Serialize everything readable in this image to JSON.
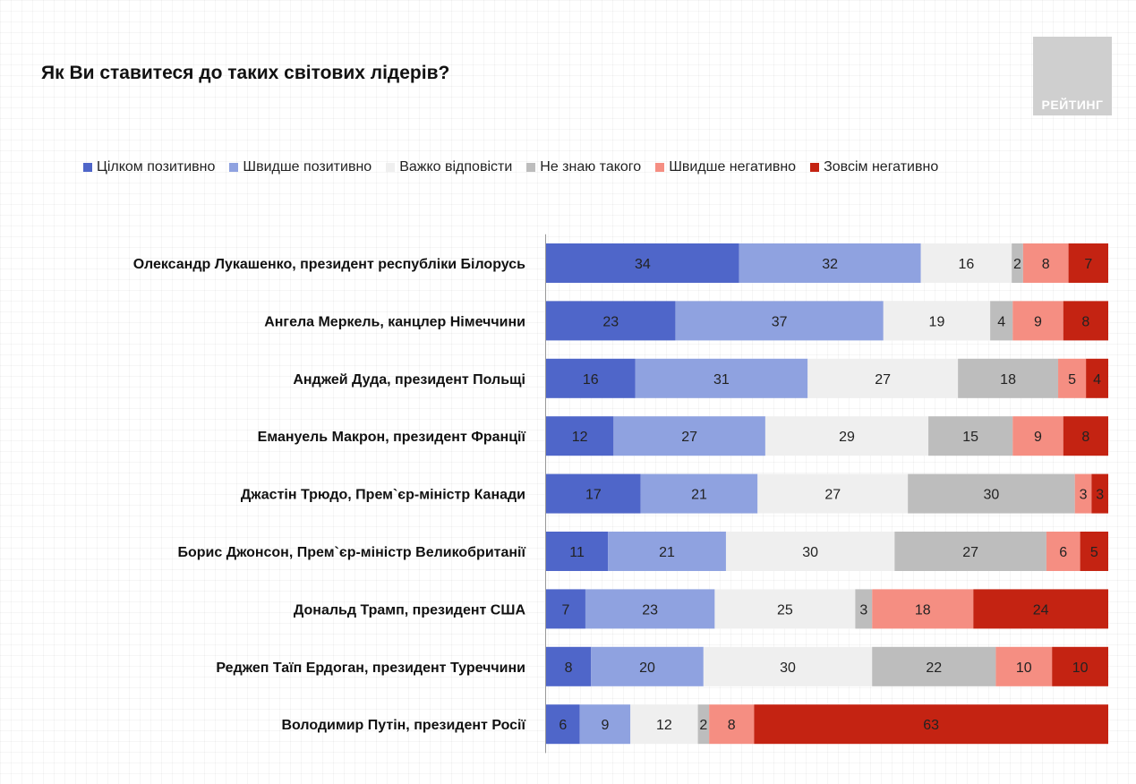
{
  "title": "Як Ви ставитеся до таких світових лідерів?",
  "logo_text": "РЕЙТИНГ",
  "colors": [
    "#4f66c9",
    "#8fa2e0",
    "#efefef",
    "#bdbdbd",
    "#f58e82",
    "#c42312"
  ],
  "chart_data": {
    "type": "bar",
    "orientation": "horizontal",
    "stacked": true,
    "title": "Як Ви ставитеся до таких світових лідерів?",
    "legend_position": "top",
    "xlim": [
      0,
      100
    ],
    "categories": [
      "Олександр Лукашенко, президент республіки Білорусь",
      "Ангела Меркель, канцлер Німеччини",
      "Анджей Дуда, президент Польщі",
      "Емануель Макрон, президент Франції",
      "Джастін Трюдо, Прем`єр-міністр Канади",
      "Борис Джонсон, Прем`єр-міністр Великобританії",
      "Дональд Трамп, президент США",
      "Реджеп Таїп Ердоган, президент Туреччини",
      "Володимир Путін, президент Росії"
    ],
    "series": [
      {
        "name": "Цілком позитивно",
        "values": [
          34,
          23,
          16,
          12,
          17,
          11,
          7,
          8,
          6
        ]
      },
      {
        "name": "Швидше позитивно",
        "values": [
          32,
          37,
          31,
          27,
          21,
          21,
          23,
          20,
          9
        ]
      },
      {
        "name": "Важко відповісти",
        "values": [
          16,
          19,
          27,
          29,
          27,
          30,
          25,
          30,
          12
        ]
      },
      {
        "name": "Не знаю такого",
        "values": [
          2,
          4,
          18,
          15,
          30,
          27,
          3,
          22,
          2
        ]
      },
      {
        "name": "Швидше негативно",
        "values": [
          8,
          9,
          5,
          9,
          3,
          6,
          18,
          10,
          8
        ]
      },
      {
        "name": "Зовсім негативно",
        "values": [
          7,
          8,
          4,
          8,
          3,
          5,
          24,
          10,
          63
        ]
      }
    ]
  }
}
